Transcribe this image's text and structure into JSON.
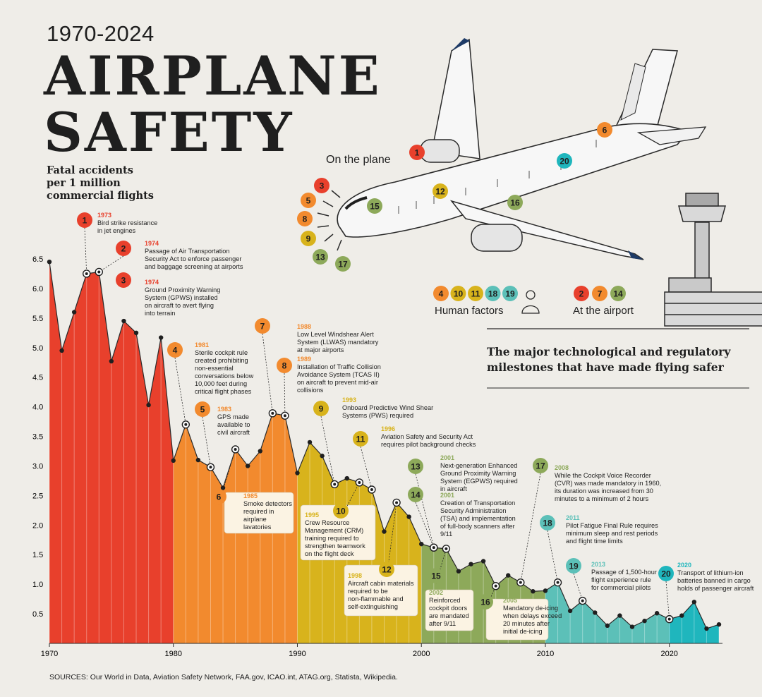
{
  "header": {
    "range": "1970-2024",
    "title_line1": "AIRPLANE",
    "title_line2": "SAFETY",
    "metric_line1": "Fatal accidents",
    "metric_line2": "per 1 million",
    "metric_line3": "commercial flights",
    "on_the_plane": "On the plane",
    "tagline_line1": "The major technological and regulatory",
    "tagline_line2": "milestones that have made flying safer"
  },
  "legend": {
    "human_factors": {
      "label": "Human factors",
      "numbers": [
        "4",
        "10",
        "11",
        "18",
        "19"
      ]
    },
    "at_the_airport": {
      "label": "At the airport",
      "numbers": [
        "2",
        "7",
        "14"
      ]
    },
    "plane_markers": [
      "1",
      "3",
      "5",
      "6",
      "8",
      "9",
      "12",
      "13",
      "15",
      "16",
      "17",
      "20"
    ]
  },
  "colors": {
    "red": "#e8402c",
    "orange": "#f28a2e",
    "yellow": "#d8b31c",
    "green": "#8da95a",
    "teal": "#5cc0b8",
    "cyan": "#1fb6bd",
    "background": "#efede8"
  },
  "sources": "SOURCES: Our World in Data, Aviation Safety Network, FAA.gov, ICAO.int, ATAG.org, Statista, Wikipedia.",
  "chart_data": {
    "type": "area",
    "title": "",
    "xlabel": "",
    "ylabel": "Fatal accidents per 1 million commercial flights",
    "xlim": [
      1970,
      2024
    ],
    "ylim": [
      0,
      6.5
    ],
    "x_ticks": [
      "1970",
      "1980",
      "1990",
      "2000",
      "2010",
      "2020"
    ],
    "y_ticks": [
      "0.5",
      "1.0",
      "1.5",
      "2.0",
      "2.5",
      "3.0",
      "3.5",
      "4.0",
      "4.5",
      "5.0",
      "5.5",
      "6.0",
      "6.5"
    ],
    "grid": false,
    "x": [
      1970,
      1971,
      1972,
      1973,
      1974,
      1975,
      1976,
      1977,
      1978,
      1979,
      1980,
      1981,
      1982,
      1983,
      1984,
      1985,
      1986,
      1987,
      1988,
      1989,
      1990,
      1991,
      1992,
      1993,
      1994,
      1995,
      1996,
      1997,
      1998,
      1999,
      2000,
      2001,
      2002,
      2003,
      2004,
      2005,
      2006,
      2007,
      2008,
      2009,
      2010,
      2011,
      2012,
      2013,
      2014,
      2015,
      2016,
      2017,
      2018,
      2019,
      2020,
      2021,
      2022,
      2023,
      2024
    ],
    "y": [
      6.45,
      4.95,
      5.6,
      6.25,
      6.28,
      4.77,
      5.45,
      5.25,
      4.03,
      5.17,
      3.09,
      3.7,
      3.1,
      2.98,
      2.63,
      3.28,
      3.0,
      3.25,
      3.89,
      3.85,
      2.88,
      3.4,
      3.17,
      2.69,
      2.79,
      2.72,
      2.6,
      1.89,
      2.38,
      2.14,
      1.68,
      1.62,
      1.6,
      1.22,
      1.34,
      1.39,
      0.97,
      1.15,
      1.03,
      0.88,
      0.89,
      1.03,
      0.55,
      0.72,
      0.52,
      0.3,
      0.47,
      0.28,
      0.38,
      0.51,
      0.41,
      0.47,
      0.7,
      0.25,
      0.32
    ],
    "milestones": [
      {
        "n": "1",
        "year": "1973",
        "text": [
          "Bird strike resistance",
          "in jet engines"
        ],
        "color": "#e8402c"
      },
      {
        "n": "2",
        "year": "1974",
        "text": [
          "Passage of Air Transportation",
          "Security Act to enforce passenger",
          "and baggage screening at airports"
        ],
        "color": "#e8402c"
      },
      {
        "n": "3",
        "year": "1974",
        "text": [
          "Ground Proximity Warning",
          "System (GPWS) installed",
          "on aircraft to avert flying",
          "into terrain"
        ],
        "color": "#e8402c"
      },
      {
        "n": "4",
        "year": "1981",
        "text": [
          "Sterile cockpit rule",
          "created prohibiting",
          "non-essential",
          "conversations below",
          "10,000 feet during",
          "critical flight phases"
        ],
        "color": "#f28a2e"
      },
      {
        "n": "5",
        "year": "1983",
        "text": [
          "GPS made",
          "available to",
          "civil aircraft"
        ],
        "color": "#f28a2e"
      },
      {
        "n": "6",
        "year": "1985",
        "text": [
          "Smoke detectors",
          "required in",
          "airplane",
          "lavatories"
        ],
        "color": "#f28a2e"
      },
      {
        "n": "7",
        "year": "1988",
        "text": [
          "Low Level Windshear Alert",
          "System (LLWAS) mandatory",
          "at major airports"
        ],
        "color": "#f28a2e"
      },
      {
        "n": "8",
        "year": "1989",
        "text": [
          "Installation of Traffic Collision",
          "Avoidance System (TCAS II)",
          "on aircraft to prevent mid-air",
          "collisions"
        ],
        "color": "#f28a2e"
      },
      {
        "n": "9",
        "year": "1993",
        "text": [
          "Onboard Predictive Wind Shear",
          "Systems (PWS) required"
        ],
        "color": "#d8b31c"
      },
      {
        "n": "10",
        "year": "1995",
        "text": [
          "Crew Resource",
          "Management (CRM)",
          "training required to",
          "strengthen teamwork",
          "on the flight deck"
        ],
        "color": "#d8b31c"
      },
      {
        "n": "11",
        "year": "1996",
        "text": [
          "Aviation Safety and Security Act",
          "requires pilot background checks"
        ],
        "color": "#d8b31c"
      },
      {
        "n": "12",
        "year": "1998",
        "text": [
          "Aircraft cabin materials",
          "required to be",
          "non-flammable and",
          "self-extinguishing"
        ],
        "color": "#d8b31c"
      },
      {
        "n": "13",
        "year": "2001",
        "text": [
          "Next-generation Enhanced",
          "Ground Proximity Warning",
          "System (EGPWS) required",
          "in aircraft"
        ],
        "color": "#8da95a"
      },
      {
        "n": "14",
        "year": "2001",
        "text": [
          "Creation of Transportation",
          "Security Administration",
          "(TSA) and implementation",
          "of full-body scanners after",
          "9/11"
        ],
        "color": "#8da95a"
      },
      {
        "n": "15",
        "year": "2002",
        "text": [
          "Reinforced",
          "cockpit doors",
          "are mandated",
          "after 9/11"
        ],
        "color": "#8da95a"
      },
      {
        "n": "16",
        "year": "2005",
        "text": [
          "Mandatory de-icing",
          "when delays exceed",
          "20 minutes after",
          "initial de-icing"
        ],
        "color": "#8da95a"
      },
      {
        "n": "17",
        "year": "2008",
        "text": [
          "While the Cockpit Voice Recorder",
          "(CVR) was made mandatory in 1960,",
          "its duration was increased from 30",
          "minutes to a minimum of 2 hours"
        ],
        "color": "#8da95a"
      },
      {
        "n": "18",
        "year": "2011",
        "text": [
          "Pilot Fatigue Final Rule requires",
          "minimum sleep and rest periods",
          "and flight time limits"
        ],
        "color": "#5cc0b8"
      },
      {
        "n": "19",
        "year": "2013",
        "text": [
          "Passage of 1,500-hour",
          "flight experience rule",
          "for commercial pilots"
        ],
        "color": "#5cc0b8"
      },
      {
        "n": "20",
        "year": "2020",
        "text": [
          "Transport of lithium-ion",
          "batteries banned in cargo",
          "holds of passenger aircraft"
        ],
        "color": "#1fb6bd"
      }
    ]
  }
}
